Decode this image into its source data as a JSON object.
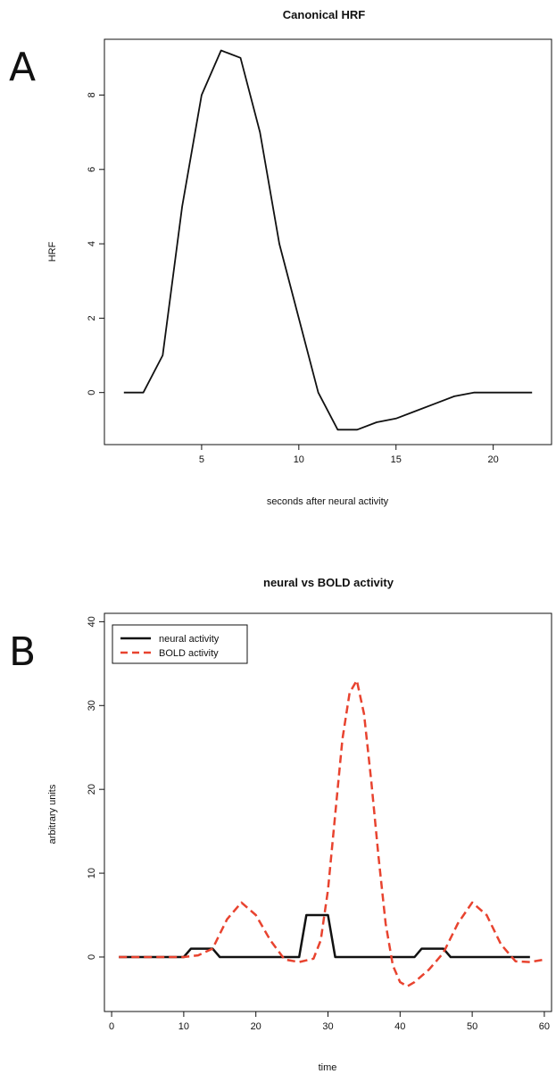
{
  "panel_labels": [
    "A",
    "B"
  ],
  "chart_data": [
    {
      "type": "line",
      "title": "Canonical HRF",
      "xlabel": "seconds after neural activity",
      "ylabel": "HRF",
      "xlim": [
        0,
        23
      ],
      "ylim": [
        -1.4,
        9.5
      ],
      "xticks": [
        5,
        10,
        15,
        20
      ],
      "yticks": [
        0,
        2,
        4,
        6,
        8
      ],
      "series": [
        {
          "x": [
            1,
            2,
            3,
            4,
            5,
            6,
            7,
            8,
            9,
            10,
            11,
            12,
            13,
            14,
            15,
            16,
            17,
            18,
            19,
            20,
            21,
            22
          ],
          "y": [
            0,
            0,
            1,
            5,
            8,
            9.2,
            9,
            7,
            4,
            2,
            0,
            -1,
            -1,
            -0.8,
            -0.7,
            -0.5,
            -0.3,
            -0.1,
            0,
            0,
            0,
            0
          ],
          "color": "#111111",
          "style": "solid"
        }
      ]
    },
    {
      "type": "line",
      "title": "neural vs BOLD activity",
      "xlabel": "time",
      "ylabel": "arbitrary units",
      "xlim": [
        -1,
        61
      ],
      "ylim": [
        -6.5,
        41
      ],
      "xticks": [
        0,
        10,
        20,
        30,
        40,
        50,
        60
      ],
      "yticks": [
        0,
        10,
        20,
        30,
        40
      ],
      "legend": "top-left",
      "series": [
        {
          "name": "neural activity",
          "color": "#111111",
          "style": "solid",
          "x": [
            1,
            10,
            11,
            14,
            15,
            26,
            27,
            30,
            31,
            42,
            43,
            46,
            47,
            58
          ],
          "y": [
            0,
            0,
            1,
            1,
            0,
            0,
            5,
            5,
            0,
            0,
            1,
            1,
            0,
            0
          ]
        },
        {
          "name": "BOLD activity",
          "color": "#e8432f",
          "style": "dashed",
          "x": [
            1,
            10,
            12,
            14,
            16,
            18,
            20,
            22,
            24,
            26,
            28,
            29,
            30,
            31,
            32,
            33,
            34,
            35,
            36,
            37,
            38,
            39,
            40,
            41,
            42,
            44,
            46,
            48,
            50,
            52,
            54,
            56,
            58,
            60
          ],
          "y": [
            0,
            0,
            0.2,
            1,
            4.5,
            6.5,
            5,
            2,
            -0.3,
            -0.6,
            -0.2,
            2,
            8,
            17,
            26,
            31.5,
            33,
            29,
            21,
            12,
            4,
            -1,
            -3,
            -3.5,
            -3,
            -1.5,
            0.5,
            4,
            6.5,
            5,
            1.5,
            -0.5,
            -0.6,
            -0.3
          ]
        }
      ]
    }
  ]
}
